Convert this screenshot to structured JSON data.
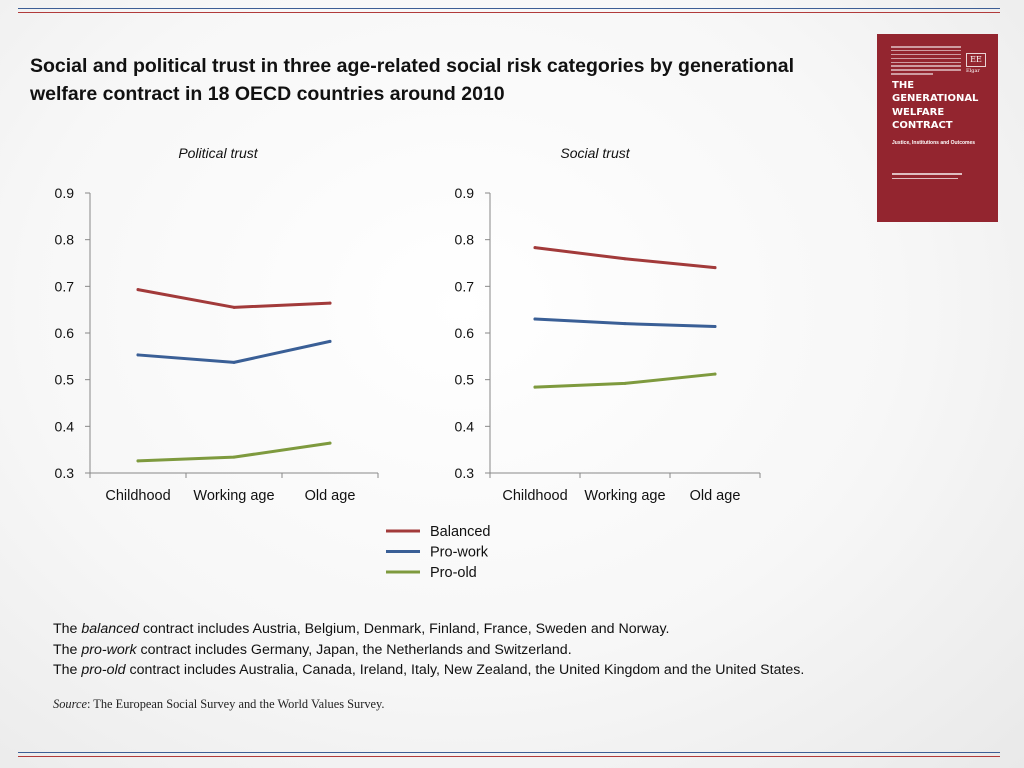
{
  "title": "Social and political trust in three age-related social risk categories by generational welfare contract in 18 OECD countries around 2010",
  "book": {
    "publisher_mark": "EE",
    "publisher_name": "Elgar",
    "title_lines": [
      "THE",
      "GENERATIONAL",
      "WELFARE",
      "CONTRACT"
    ],
    "subtitle": "Justice, Institutions and Outcomes"
  },
  "colors": {
    "balanced": "#a23a3a",
    "pro_work": "#3a5f96",
    "pro_old": "#7e9a3e",
    "rule_blue": "#3d5e95",
    "rule_red": "#b13b3b",
    "book": "#93252f"
  },
  "chart_data": [
    {
      "type": "line",
      "title": "Political trust",
      "categories": [
        "Childhood",
        "Working age",
        "Old age"
      ],
      "ylim": [
        0.3,
        0.9
      ],
      "yticks": [
        "0.9",
        "0.8",
        "0.7",
        "0.6",
        "0.5",
        "0.4",
        "0.3"
      ],
      "series": [
        {
          "name": "Balanced",
          "values": [
            0.693,
            0.655,
            0.664
          ]
        },
        {
          "name": "Pro-work",
          "values": [
            0.553,
            0.537,
            0.582
          ]
        },
        {
          "name": "Pro-old",
          "values": [
            0.326,
            0.334,
            0.364
          ]
        }
      ]
    },
    {
      "type": "line",
      "title": "Social trust",
      "categories": [
        "Childhood",
        "Working age",
        "Old age"
      ],
      "ylim": [
        0.3,
        0.9
      ],
      "yticks": [
        "0.9",
        "0.8",
        "0.7",
        "0.6",
        "0.5",
        "0.4",
        "0.3"
      ],
      "series": [
        {
          "name": "Balanced",
          "values": [
            0.783,
            0.759,
            0.74
          ]
        },
        {
          "name": "Pro-work",
          "values": [
            0.63,
            0.62,
            0.614
          ]
        },
        {
          "name": "Pro-old",
          "values": [
            0.484,
            0.492,
            0.512
          ]
        }
      ]
    }
  ],
  "legend": [
    "Balanced",
    "Pro-work",
    "Pro-old"
  ],
  "notes": [
    {
      "pre": "The ",
      "em": "balanced",
      "post": " contract includes Austria, Belgium, Denmark, Finland, France, Sweden and Norway."
    },
    {
      "pre": "The ",
      "em": "pro-work",
      "post": " contract includes Germany, Japan, the Netherlands and Switzerland."
    },
    {
      "pre": "The ",
      "em": "pro-old",
      "post": " contract includes Australia, Canada, Ireland, Italy, New Zealand, the United Kingdom and the United States."
    }
  ],
  "source": {
    "label": "Source",
    "text": ": The European Social Survey and the World Values Survey."
  }
}
